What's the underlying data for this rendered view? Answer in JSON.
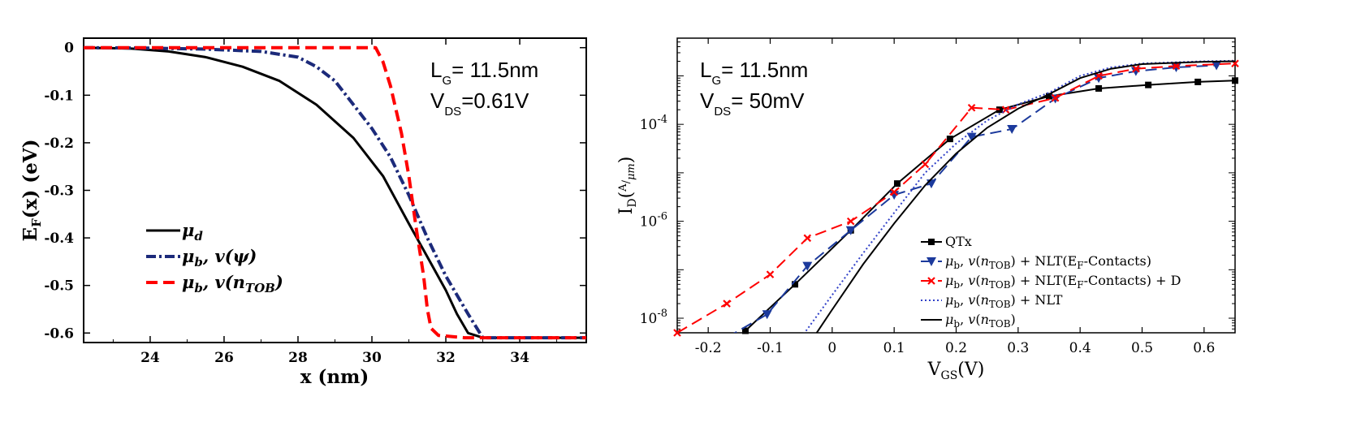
{
  "chart_data": [
    {
      "type": "line",
      "xlabel": "x (nm)",
      "ylabel": "E_F(x) (eV)",
      "xlim": [
        22.2,
        35.8
      ],
      "ylim": [
        -0.62,
        0.02
      ],
      "xticks": [
        "24",
        "26",
        "28",
        "30",
        "32",
        "34"
      ],
      "yticks": [
        "0",
        "-0.1",
        "-0.2",
        "-0.3",
        "-0.4",
        "-0.5",
        "-0.6"
      ],
      "annotations": [
        {
          "main": "L",
          "sub": "G",
          "rest": "= 11.5nm"
        },
        {
          "main": "V",
          "sub": "DS",
          "rest": "=0.61V"
        }
      ],
      "legend_position": "lower-left",
      "series": [
        {
          "name": "μd",
          "color": "#000000",
          "style": "solid",
          "x": [
            22.2,
            23.5,
            24.5,
            25.5,
            26.5,
            27.5,
            28.5,
            29.5,
            30.3,
            31.0,
            31.5,
            32.0,
            32.3,
            32.6,
            33.0,
            35.8
          ],
          "y": [
            0.0,
            -0.002,
            -0.008,
            -0.02,
            -0.04,
            -0.07,
            -0.12,
            -0.19,
            -0.27,
            -0.37,
            -0.44,
            -0.51,
            -0.56,
            -0.6,
            -0.61,
            -0.61
          ]
        },
        {
          "name": "μb, v(ψ)",
          "color": "#1c2a7a",
          "style": "dashdot",
          "x": [
            22.2,
            24.0,
            25.5,
            27.0,
            28.0,
            28.5,
            29.0,
            29.5,
            30.0,
            30.5,
            31.0,
            31.5,
            32.0,
            32.3,
            32.6,
            33.0,
            35.8
          ],
          "y": [
            0.0,
            -0.001,
            -0.003,
            -0.008,
            -0.02,
            -0.04,
            -0.07,
            -0.12,
            -0.17,
            -0.23,
            -0.31,
            -0.4,
            -0.48,
            -0.52,
            -0.56,
            -0.61,
            -0.61
          ]
        },
        {
          "name": "μb, v(nTOB)",
          "color": "#ff0000",
          "style": "dashed",
          "x": [
            22.2,
            24.0,
            26.0,
            28.0,
            29.5,
            30.1,
            30.3,
            30.5,
            30.8,
            31.0,
            31.2,
            31.4,
            31.5,
            31.6,
            31.8,
            32.5,
            35.8
          ],
          "y": [
            0.0,
            0.0,
            0.0,
            0.0,
            0.0,
            0.0,
            -0.03,
            -0.08,
            -0.18,
            -0.27,
            -0.38,
            -0.48,
            -0.55,
            -0.59,
            -0.605,
            -0.61,
            -0.61
          ]
        }
      ]
    },
    {
      "type": "line",
      "xlabel": "V_GS(V)",
      "ylabel": "I_D(A/μm)",
      "y_scale": "log",
      "xlim": [
        -0.25,
        0.65
      ],
      "ylim": [
        5e-09,
        0.006
      ],
      "xticks": [
        "-0.2",
        "-0.1",
        "0",
        "0.1",
        "0.2",
        "0.3",
        "0.4",
        "0.5",
        "0.6"
      ],
      "yticks": [
        {
          "base": "10",
          "exp": "-4",
          "value": 0.0001
        },
        {
          "base": "10",
          "exp": "-6",
          "value": 1e-06
        },
        {
          "base": "10",
          "exp": "-8",
          "value": 1e-08
        }
      ],
      "annotations": [
        {
          "main": "L",
          "sub": "G",
          "rest": "= 11.5nm"
        },
        {
          "main": "V",
          "sub": "DS",
          "rest": "= 50mV"
        }
      ],
      "legend_position": "lower-right",
      "series": [
        {
          "name": "QTx",
          "color": "#000000",
          "style": "solid",
          "marker": "square",
          "x": [
            -0.14,
            -0.06,
            0.03,
            0.105,
            0.19,
            0.27,
            0.35,
            0.43,
            0.51,
            0.59,
            0.65
          ],
          "y": [
            5.5e-09,
            5e-08,
            6.5e-07,
            6e-06,
            5e-05,
            0.0002,
            0.00038,
            0.00055,
            0.00065,
            0.00075,
            0.0008
          ]
        },
        {
          "name": "μb, v(nTOB) + NLT(EF-Contacts)",
          "color": "#1c3a9c",
          "style": "dashed",
          "marker": "triangle-down",
          "x": [
            -0.17,
            -0.105,
            -0.04,
            0.03,
            0.1,
            0.16,
            0.225,
            0.29,
            0.36,
            0.43,
            0.49,
            0.555,
            0.62
          ],
          "y": [
            4e-09,
            1.2e-08,
            1.2e-07,
            6.5e-07,
            3.5e-06,
            6e-06,
            5.5e-05,
            8e-05,
            0.00034,
            0.0009,
            0.00125,
            0.0015,
            0.00165
          ]
        },
        {
          "name": "μb, v(nTOB) + NLT(EF-Contacts) + D",
          "color": "#ff0000",
          "style": "dashed",
          "marker": "x",
          "x": [
            -0.25,
            -0.17,
            -0.1,
            -0.04,
            0.03,
            0.1,
            0.15,
            0.225,
            0.28,
            0.36,
            0.43,
            0.49,
            0.555,
            0.65
          ],
          "y": [
            5e-09,
            2e-08,
            8e-08,
            4.5e-07,
            1e-06,
            4e-06,
            1.5e-05,
            0.00022,
            0.0002,
            0.00035,
            0.001,
            0.0014,
            0.0016,
            0.0018
          ]
        },
        {
          "name": "μb, v(nTOB) + NLT",
          "color": "#3040c8",
          "style": "dotted",
          "marker": "none",
          "x": [
            -0.05,
            0.0,
            0.05,
            0.1,
            0.15,
            0.2,
            0.25,
            0.3,
            0.35,
            0.4,
            0.45,
            0.5,
            0.55,
            0.6,
            0.65
          ],
          "y": [
            4e-09,
            3e-08,
            2.2e-07,
            1.5e-06,
            1e-05,
            4e-05,
            0.00012,
            0.00026,
            0.00045,
            0.001,
            0.0015,
            0.0018,
            0.0019,
            0.002,
            0.00205
          ]
        },
        {
          "name": "μb, v(nTOB)",
          "color": "#000000",
          "style": "solid",
          "marker": "none",
          "x": [
            -0.03,
            0.0,
            0.05,
            0.1,
            0.15,
            0.2,
            0.25,
            0.3,
            0.35,
            0.4,
            0.45,
            0.5,
            0.55,
            0.6,
            0.65
          ],
          "y": [
            4e-09,
            1.5e-08,
            1.3e-07,
            9e-07,
            5.5e-06,
            2.5e-05,
            8.5e-05,
            0.00021,
            0.00042,
            0.0009,
            0.0014,
            0.00175,
            0.00185,
            0.00195,
            0.002
          ]
        }
      ]
    }
  ]
}
